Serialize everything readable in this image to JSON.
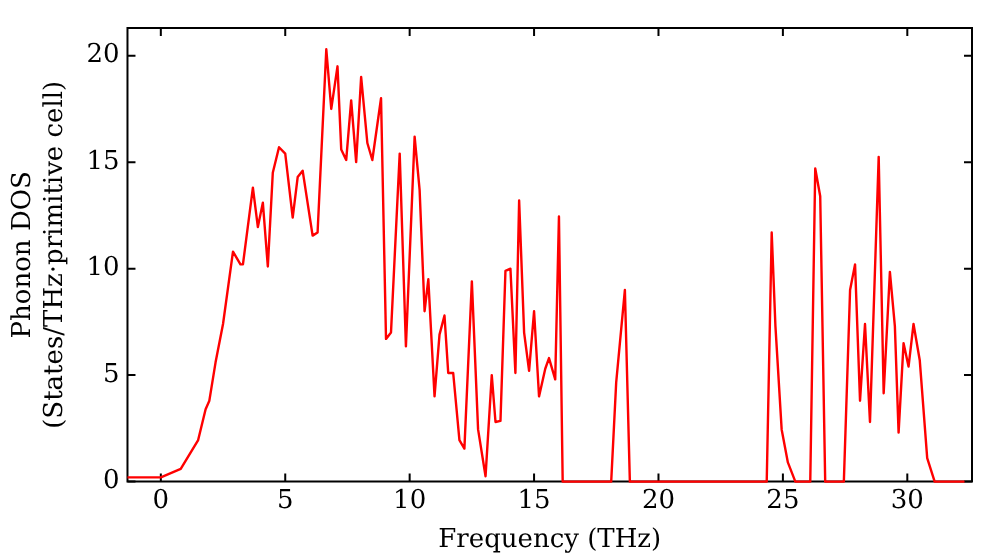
{
  "chart_data": {
    "type": "line",
    "xlabel": "Frequency (THz)",
    "ylabel": "Phonon DOS\n(States/THz·primitive cell)",
    "x": [
      -1.34,
      0,
      0.8,
      1.5,
      1.8,
      1.95,
      2.2,
      2.5,
      2.9,
      3.2,
      3.3,
      3.7,
      3.9,
      4.1,
      4.3,
      4.5,
      4.75,
      5.0,
      5.3,
      5.5,
      5.7,
      6.1,
      6.3,
      6.65,
      6.85,
      7.1,
      7.25,
      7.45,
      7.65,
      7.85,
      8.05,
      8.3,
      8.5,
      8.85,
      9.05,
      9.25,
      9.6,
      9.85,
      10.2,
      10.4,
      10.6,
      10.75,
      11.0,
      11.2,
      11.4,
      11.55,
      11.75,
      12.0,
      12.2,
      12.5,
      12.75,
      13.05,
      13.3,
      13.45,
      13.65,
      13.85,
      14.05,
      14.25,
      14.4,
      14.6,
      14.8,
      15.0,
      15.2,
      15.45,
      15.6,
      15.85,
      16.0,
      16.15,
      18.1,
      18.3,
      18.65,
      18.85,
      24.35,
      24.55,
      24.7,
      24.95,
      25.2,
      25.5,
      26.1,
      26.3,
      26.5,
      26.7,
      27.45,
      27.7,
      27.9,
      28.1,
      28.3,
      28.5,
      28.85,
      29.05,
      29.3,
      29.5,
      29.65,
      29.85,
      30.05,
      30.25,
      30.5,
      30.8,
      31.1,
      32.3
    ],
    "values": [
      0.2,
      0.2,
      0.6,
      1.95,
      3.4,
      3.8,
      5.6,
      7.4,
      10.8,
      10.2,
      10.2,
      13.8,
      11.95,
      13.1,
      10.1,
      14.5,
      15.7,
      15.4,
      12.4,
      14.3,
      14.6,
      11.55,
      11.7,
      20.3,
      17.5,
      19.5,
      15.6,
      15.1,
      17.9,
      15,
      19,
      15.9,
      15.1,
      18,
      6.7,
      7,
      15.4,
      6.35,
      16.2,
      13.7,
      8,
      9.5,
      4,
      6.9,
      7.8,
      5.1,
      5.1,
      1.95,
      1.55,
      9.4,
      2.45,
      0.25,
      5,
      2.8,
      2.85,
      9.9,
      10,
      5.1,
      13.2,
      7,
      5.2,
      8,
      4,
      5.3,
      5.8,
      4.8,
      12.45,
      0,
      0,
      4.65,
      9,
      0,
      0,
      11.7,
      7.3,
      2.45,
      0.9,
      0,
      0,
      14.7,
      13.4,
      0,
      0,
      9,
      10.2,
      3.8,
      7.4,
      2.8,
      15.25,
      4.15,
      9.85,
      7.3,
      2.3,
      6.5,
      5.4,
      7.4,
      5.7,
      1.1,
      0,
      0
    ],
    "color": "#ff0000",
    "xlim": [
      -1.34,
      32.6
    ],
    "ylim": [
      0,
      21.3
    ],
    "xticks": [
      0,
      5,
      10,
      15,
      20,
      25,
      30
    ],
    "yticks": [
      0,
      5,
      10,
      15,
      20
    ],
    "grid": false,
    "legend": false,
    "marker": "none",
    "line_style": "solid"
  }
}
